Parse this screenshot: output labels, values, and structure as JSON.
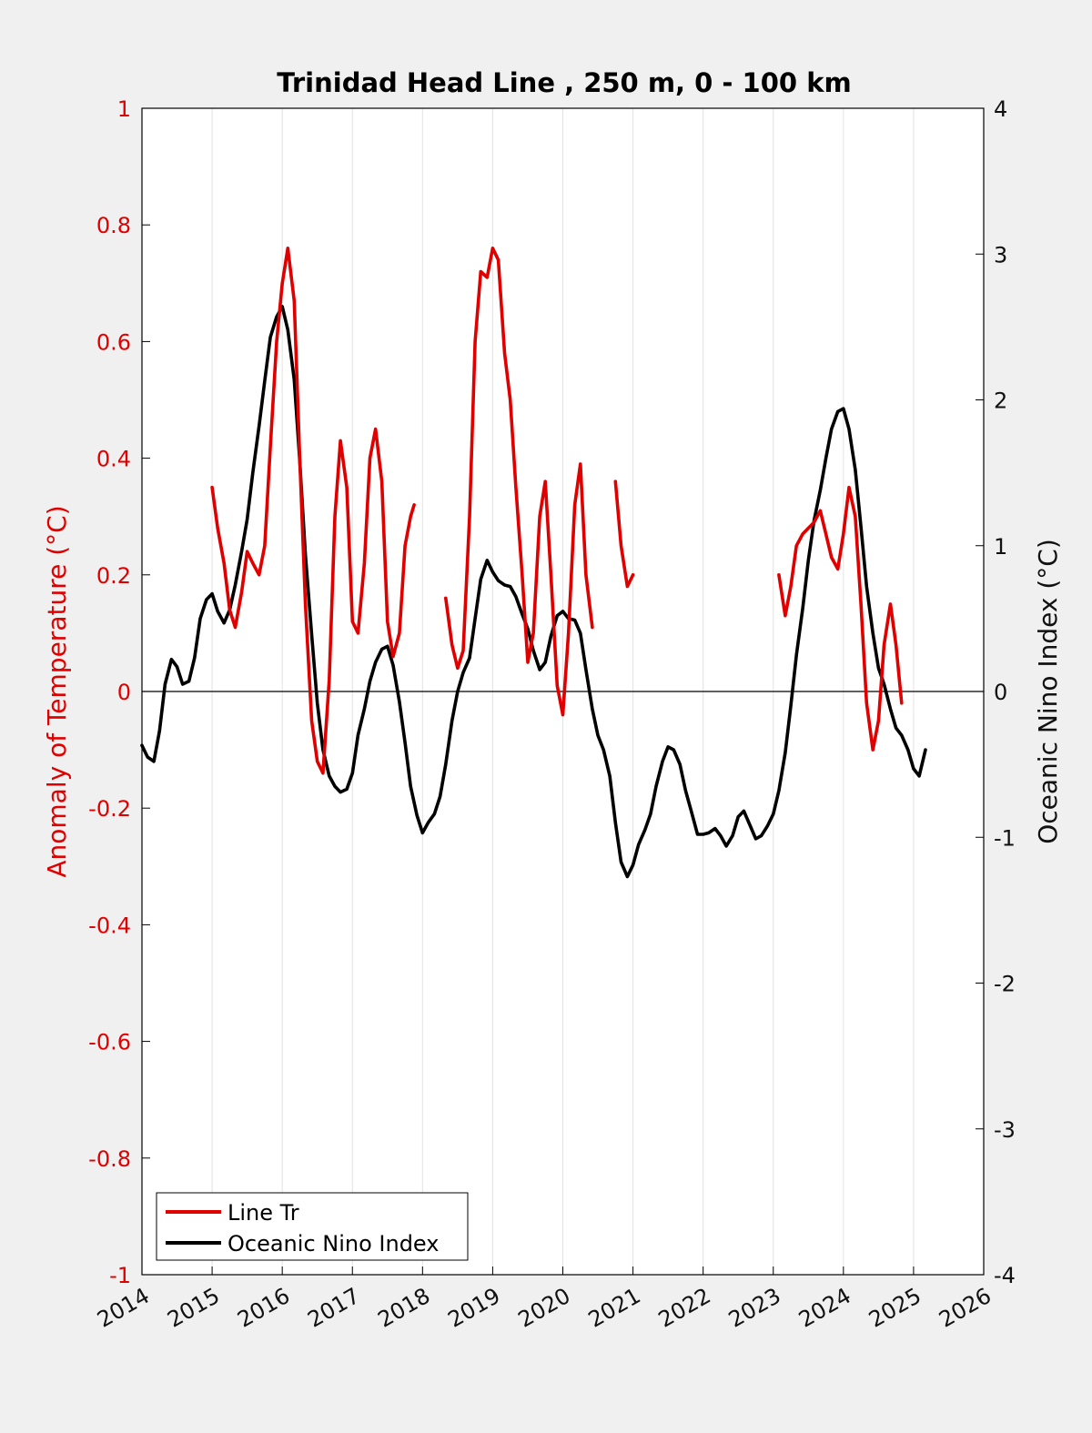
{
  "chart_data": {
    "type": "line",
    "title": "Trinidad Head Line , 250 m, 0 - 100 km",
    "xlim": [
      2014,
      2026
    ],
    "x_ticks": [
      2014,
      2015,
      2016,
      2017,
      2018,
      2019,
      2020,
      2021,
      2022,
      2023,
      2024,
      2025,
      2026
    ],
    "x_tick_labels": [
      "2014",
      "2015",
      "2016",
      "2017",
      "2018",
      "2019",
      "2020",
      "2021",
      "2022",
      "2023",
      "2024",
      "2025",
      "2026"
    ],
    "y_left": {
      "label": "Anomaly of Temperature (°C)",
      "lim": [
        -1,
        1
      ],
      "ticks": [
        1,
        0.8,
        0.6,
        0.4,
        0.2,
        0,
        -0.2,
        -0.4,
        -0.6,
        -0.8,
        -1
      ],
      "tick_labels": [
        "1",
        "0.8",
        "0.6",
        "0.4",
        "0.2",
        "0",
        "-0.2",
        "-0.4",
        "-0.6",
        "-0.8",
        "-1"
      ],
      "color": "#e00000"
    },
    "y_right": {
      "label": "Oceanic Nino Index (°C)",
      "lim": [
        -4,
        4
      ],
      "ticks": [
        4,
        3,
        2,
        1,
        0,
        -1,
        -2,
        -3,
        -4
      ],
      "tick_labels": [
        "4",
        "3",
        "2",
        "1",
        "0",
        "-1",
        "-2",
        "-3",
        "-4"
      ],
      "color": "#000000"
    },
    "grid": "vertical",
    "zero_line": true,
    "legend": {
      "placement": "bottom-left",
      "entries": [
        "Line Tr",
        "Oceanic Nino Index"
      ]
    },
    "series": [
      {
        "name": "Line Tr",
        "axis": "left",
        "color": "#e00000",
        "segments": [
          [
            [
              2015.0,
              0.35
            ],
            [
              2015.08,
              0.28
            ],
            [
              2015.17,
              0.22
            ],
            [
              2015.25,
              0.14
            ],
            [
              2015.33,
              0.11
            ],
            [
              2015.42,
              0.17
            ],
            [
              2015.5,
              0.24
            ],
            [
              2015.58,
              0.22
            ],
            [
              2015.67,
              0.2
            ],
            [
              2015.75,
              0.25
            ],
            [
              2015.83,
              0.42
            ],
            [
              2015.92,
              0.6
            ],
            [
              2016.0,
              0.7
            ],
            [
              2016.08,
              0.76
            ],
            [
              2016.17,
              0.67
            ],
            [
              2016.25,
              0.4
            ],
            [
              2016.33,
              0.15
            ],
            [
              2016.42,
              -0.05
            ],
            [
              2016.5,
              -0.12
            ],
            [
              2016.58,
              -0.14
            ],
            [
              2016.67,
              0.02
            ],
            [
              2016.75,
              0.3
            ],
            [
              2016.83,
              0.43
            ],
            [
              2016.92,
              0.35
            ],
            [
              2017.0,
              0.12
            ],
            [
              2017.08,
              0.1
            ],
            [
              2017.17,
              0.22
            ],
            [
              2017.25,
              0.4
            ],
            [
              2017.33,
              0.45
            ],
            [
              2017.42,
              0.36
            ],
            [
              2017.5,
              0.12
            ],
            [
              2017.58,
              0.06
            ],
            [
              2017.67,
              0.1
            ],
            [
              2017.75,
              0.25
            ],
            [
              2017.83,
              0.3
            ],
            [
              2017.88,
              0.32
            ]
          ],
          [
            [
              2018.33,
              0.16
            ],
            [
              2018.42,
              0.08
            ],
            [
              2018.5,
              0.04
            ],
            [
              2018.58,
              0.07
            ],
            [
              2018.67,
              0.3
            ],
            [
              2018.75,
              0.6
            ],
            [
              2018.83,
              0.72
            ],
            [
              2018.92,
              0.71
            ],
            [
              2019.0,
              0.76
            ],
            [
              2019.08,
              0.74
            ],
            [
              2019.17,
              0.58
            ],
            [
              2019.25,
              0.5
            ],
            [
              2019.33,
              0.35
            ],
            [
              2019.42,
              0.2
            ],
            [
              2019.5,
              0.05
            ],
            [
              2019.58,
              0.1
            ],
            [
              2019.67,
              0.3
            ],
            [
              2019.75,
              0.36
            ],
            [
              2019.83,
              0.2
            ],
            [
              2019.92,
              0.01
            ],
            [
              2020.0,
              -0.04
            ],
            [
              2020.08,
              0.1
            ],
            [
              2020.17,
              0.32
            ],
            [
              2020.25,
              0.39
            ],
            [
              2020.33,
              0.2
            ],
            [
              2020.42,
              0.11
            ]
          ],
          [
            [
              2020.75,
              0.36
            ],
            [
              2020.83,
              0.25
            ],
            [
              2020.92,
              0.18
            ],
            [
              2021.0,
              0.2
            ]
          ],
          [
            [
              2023.08,
              0.2
            ],
            [
              2023.17,
              0.13
            ],
            [
              2023.25,
              0.18
            ],
            [
              2023.33,
              0.25
            ],
            [
              2023.42,
              0.27
            ],
            [
              2023.5,
              0.28
            ],
            [
              2023.58,
              0.29
            ],
            [
              2023.67,
              0.31
            ],
            [
              2023.75,
              0.27
            ],
            [
              2023.83,
              0.23
            ],
            [
              2023.92,
              0.21
            ],
            [
              2024.0,
              0.27
            ],
            [
              2024.08,
              0.35
            ],
            [
              2024.17,
              0.3
            ],
            [
              2024.25,
              0.15
            ],
            [
              2024.33,
              -0.02
            ],
            [
              2024.42,
              -0.1
            ],
            [
              2024.5,
              -0.05
            ],
            [
              2024.58,
              0.08
            ],
            [
              2024.67,
              0.15
            ],
            [
              2024.75,
              0.08
            ],
            [
              2024.83,
              -0.02
            ]
          ]
        ]
      },
      {
        "name": "Oceanic Nino Index",
        "axis": "right",
        "color": "#000000",
        "segments": [
          [
            [
              2014.0,
              -0.37
            ],
            [
              2014.08,
              -0.45
            ],
            [
              2014.17,
              -0.48
            ],
            [
              2014.25,
              -0.27
            ],
            [
              2014.33,
              0.05
            ],
            [
              2014.42,
              0.22
            ],
            [
              2014.5,
              0.17
            ],
            [
              2014.58,
              0.05
            ],
            [
              2014.67,
              0.07
            ],
            [
              2014.75,
              0.23
            ],
            [
              2014.83,
              0.5
            ],
            [
              2014.92,
              0.63
            ],
            [
              2015.0,
              0.67
            ],
            [
              2015.08,
              0.55
            ],
            [
              2015.17,
              0.47
            ],
            [
              2015.25,
              0.56
            ],
            [
              2015.33,
              0.73
            ],
            [
              2015.42,
              0.96
            ],
            [
              2015.5,
              1.18
            ],
            [
              2015.58,
              1.5
            ],
            [
              2015.67,
              1.82
            ],
            [
              2015.75,
              2.13
            ],
            [
              2015.83,
              2.43
            ],
            [
              2015.92,
              2.57
            ],
            [
              2016.0,
              2.64
            ],
            [
              2016.08,
              2.48
            ],
            [
              2016.17,
              2.14
            ],
            [
              2016.25,
              1.58
            ],
            [
              2016.33,
              0.94
            ],
            [
              2016.42,
              0.39
            ],
            [
              2016.5,
              -0.08
            ],
            [
              2016.58,
              -0.4
            ],
            [
              2016.67,
              -0.58
            ],
            [
              2016.75,
              -0.65
            ],
            [
              2016.83,
              -0.69
            ],
            [
              2016.92,
              -0.67
            ],
            [
              2017.0,
              -0.56
            ],
            [
              2017.08,
              -0.3
            ],
            [
              2017.17,
              -0.12
            ],
            [
              2017.25,
              0.07
            ],
            [
              2017.33,
              0.2
            ],
            [
              2017.42,
              0.29
            ],
            [
              2017.5,
              0.31
            ],
            [
              2017.58,
              0.18
            ],
            [
              2017.67,
              -0.07
            ],
            [
              2017.75,
              -0.35
            ],
            [
              2017.83,
              -0.65
            ],
            [
              2017.92,
              -0.85
            ],
            [
              2018.0,
              -0.97
            ],
            [
              2018.08,
              -0.9
            ],
            [
              2018.17,
              -0.84
            ],
            [
              2018.25,
              -0.72
            ],
            [
              2018.33,
              -0.5
            ],
            [
              2018.42,
              -0.2
            ],
            [
              2018.5,
              0.0
            ],
            [
              2018.58,
              0.13
            ],
            [
              2018.67,
              0.23
            ],
            [
              2018.75,
              0.5
            ],
            [
              2018.83,
              0.77
            ],
            [
              2018.92,
              0.9
            ],
            [
              2019.0,
              0.82
            ],
            [
              2019.08,
              0.76
            ],
            [
              2019.17,
              0.73
            ],
            [
              2019.25,
              0.72
            ],
            [
              2019.33,
              0.65
            ],
            [
              2019.42,
              0.53
            ],
            [
              2019.5,
              0.43
            ],
            [
              2019.58,
              0.28
            ],
            [
              2019.67,
              0.15
            ],
            [
              2019.75,
              0.2
            ],
            [
              2019.83,
              0.38
            ],
            [
              2019.92,
              0.52
            ],
            [
              2020.0,
              0.55
            ],
            [
              2020.08,
              0.5
            ],
            [
              2020.17,
              0.49
            ],
            [
              2020.25,
              0.4
            ],
            [
              2020.33,
              0.15
            ],
            [
              2020.42,
              -0.12
            ],
            [
              2020.5,
              -0.3
            ],
            [
              2020.58,
              -0.4
            ],
            [
              2020.67,
              -0.58
            ],
            [
              2020.75,
              -0.9
            ],
            [
              2020.83,
              -1.17
            ],
            [
              2020.92,
              -1.27
            ],
            [
              2021.0,
              -1.19
            ],
            [
              2021.08,
              -1.05
            ],
            [
              2021.17,
              -0.95
            ],
            [
              2021.25,
              -0.84
            ],
            [
              2021.33,
              -0.65
            ],
            [
              2021.42,
              -0.48
            ],
            [
              2021.5,
              -0.38
            ],
            [
              2021.58,
              -0.4
            ],
            [
              2021.67,
              -0.5
            ],
            [
              2021.75,
              -0.68
            ],
            [
              2021.83,
              -0.82
            ],
            [
              2021.92,
              -0.98
            ],
            [
              2022.0,
              -0.98
            ],
            [
              2022.08,
              -0.97
            ],
            [
              2022.17,
              -0.94
            ],
            [
              2022.25,
              -0.99
            ],
            [
              2022.33,
              -1.06
            ],
            [
              2022.42,
              -0.99
            ],
            [
              2022.5,
              -0.86
            ],
            [
              2022.58,
              -0.82
            ],
            [
              2022.67,
              -0.92
            ],
            [
              2022.75,
              -1.01
            ],
            [
              2022.83,
              -0.99
            ],
            [
              2022.92,
              -0.92
            ],
            [
              2023.0,
              -0.84
            ],
            [
              2023.08,
              -0.68
            ],
            [
              2023.17,
              -0.42
            ],
            [
              2023.25,
              -0.1
            ],
            [
              2023.33,
              0.25
            ],
            [
              2023.42,
              0.57
            ],
            [
              2023.5,
              0.9
            ],
            [
              2023.58,
              1.17
            ],
            [
              2023.67,
              1.38
            ],
            [
              2023.75,
              1.6
            ],
            [
              2023.83,
              1.8
            ],
            [
              2023.92,
              1.92
            ],
            [
              2024.0,
              1.94
            ],
            [
              2024.08,
              1.8
            ],
            [
              2024.17,
              1.52
            ],
            [
              2024.25,
              1.13
            ],
            [
              2024.33,
              0.72
            ],
            [
              2024.42,
              0.4
            ],
            [
              2024.5,
              0.16
            ],
            [
              2024.58,
              0.05
            ],
            [
              2024.67,
              -0.12
            ],
            [
              2024.75,
              -0.25
            ],
            [
              2024.83,
              -0.3
            ],
            [
              2024.92,
              -0.4
            ],
            [
              2025.0,
              -0.53
            ],
            [
              2025.08,
              -0.58
            ],
            [
              2025.17,
              -0.4
            ]
          ]
        ]
      }
    ]
  }
}
